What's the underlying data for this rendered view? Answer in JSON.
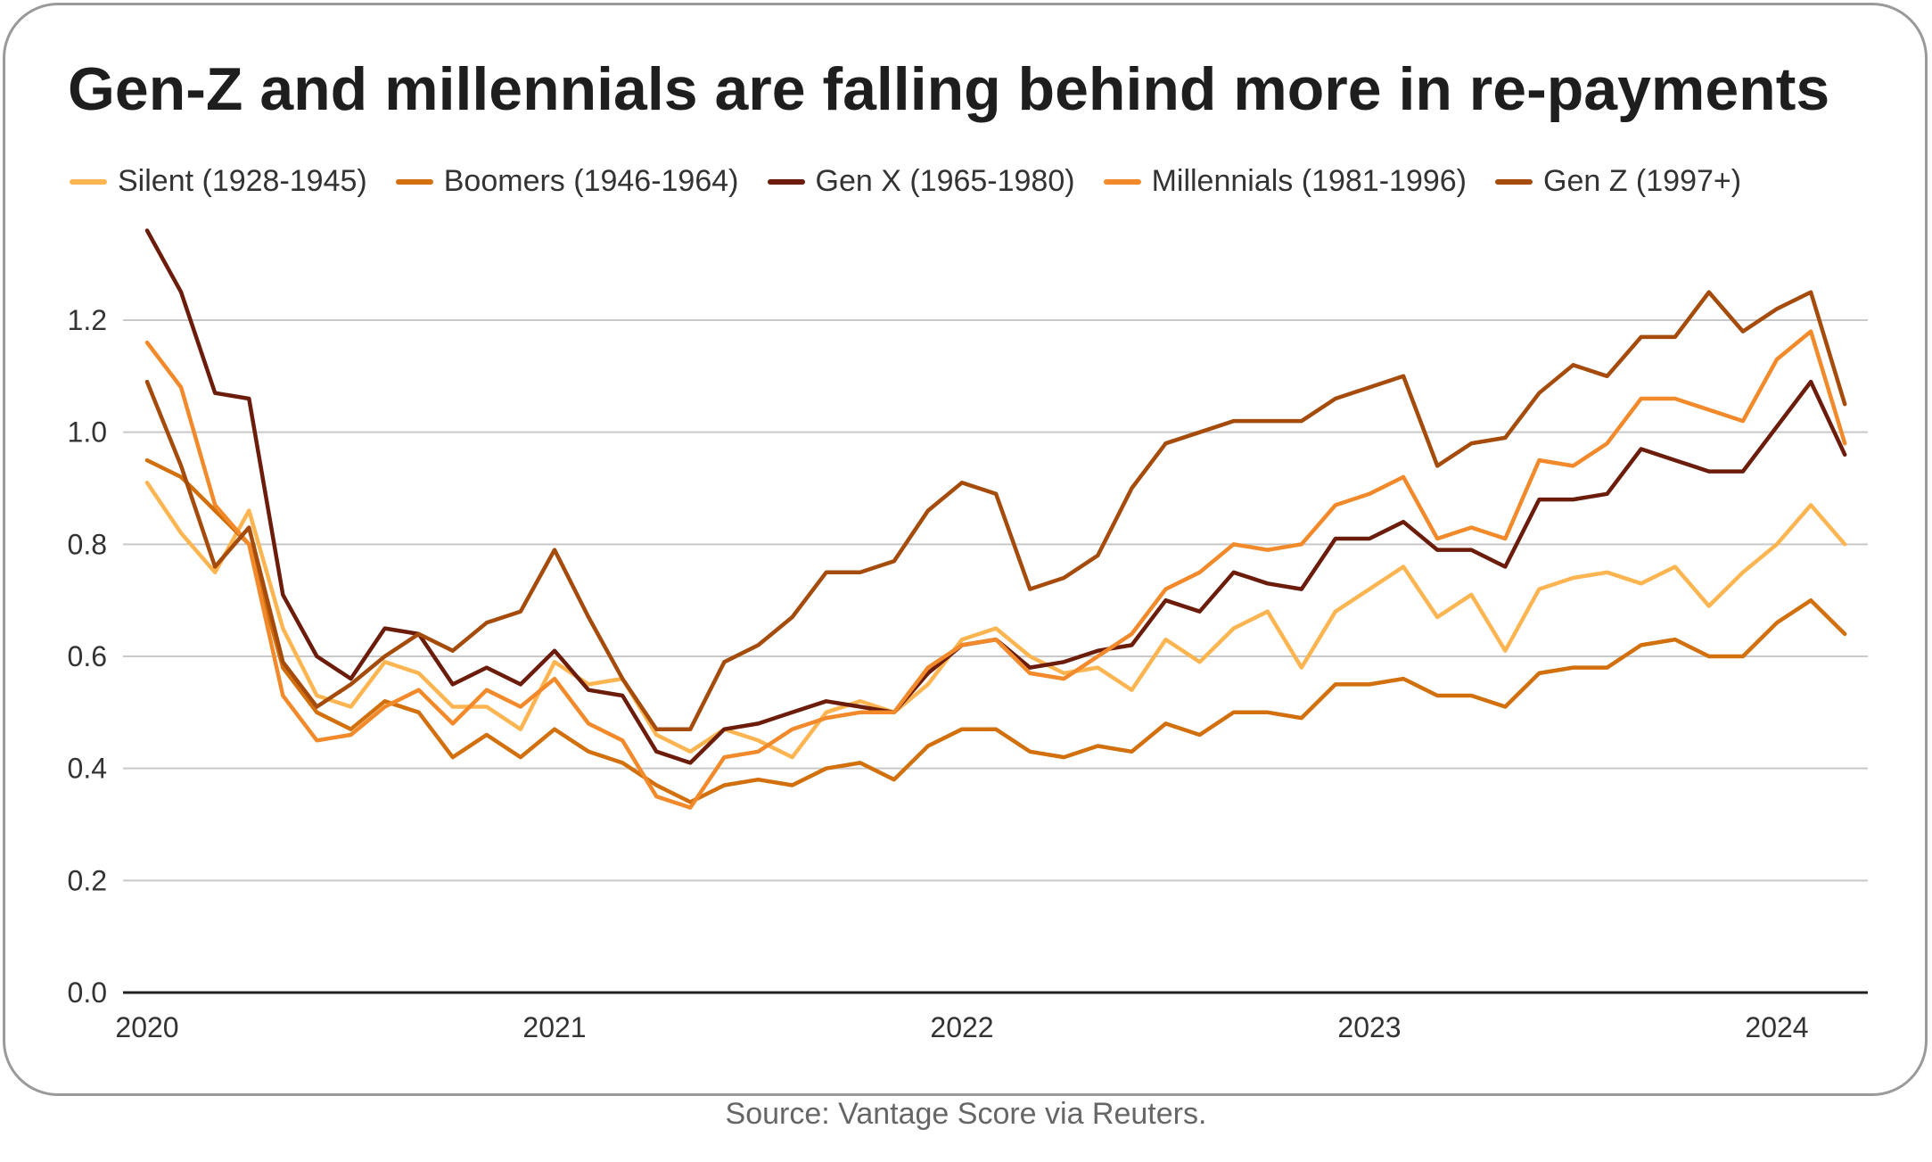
{
  "title": "Gen-Z and millennials are falling behind more in re-payments",
  "source": "Source: Vantage Score via Reuters.",
  "chart_data": {
    "type": "line",
    "title": "Gen-Z and millennials are falling behind more in re-payments",
    "xlabel": "",
    "ylabel": "",
    "ylim": [
      0,
      1.35
    ],
    "yticks": [
      0.0,
      0.2,
      0.4,
      0.6,
      0.8,
      1.0,
      1.2
    ],
    "ytick_labels": [
      "0.0",
      "0.2",
      "0.4",
      "0.6",
      "0.8",
      "1.0",
      "1.2"
    ],
    "xlim": [
      2020,
      2024.25
    ],
    "xticks": [
      2020,
      2021,
      2022,
      2023,
      2024
    ],
    "xtick_labels": [
      "2020",
      "2021",
      "2022",
      "2023",
      "2024"
    ],
    "grid": "horizontal",
    "legend_position": "top",
    "x_start": "2020-01",
    "x_step": "monthly",
    "series": [
      {
        "name": "Silent (1928-1945)",
        "color": "#fdb552",
        "values": [
          0.91,
          0.82,
          0.75,
          0.86,
          0.65,
          0.53,
          0.51,
          0.59,
          0.57,
          0.51,
          0.51,
          0.47,
          0.59,
          0.55,
          0.56,
          0.46,
          0.43,
          0.47,
          0.45,
          0.42,
          0.5,
          0.52,
          0.5,
          0.55,
          0.63,
          0.65,
          0.6,
          0.57,
          0.58,
          0.54,
          0.63,
          0.59,
          0.65,
          0.68,
          0.58,
          0.68,
          0.72,
          0.76,
          0.67,
          0.71,
          0.61,
          0.72,
          0.74,
          0.75,
          0.73,
          0.76,
          0.69,
          0.75,
          0.8,
          0.87,
          0.8
        ]
      },
      {
        "name": "Boomers (1946-1964)",
        "color": "#d2700e",
        "values": [
          0.95,
          0.92,
          0.86,
          0.8,
          0.58,
          0.5,
          0.47,
          0.52,
          0.5,
          0.42,
          0.46,
          0.42,
          0.47,
          0.43,
          0.41,
          0.37,
          0.34,
          0.37,
          0.38,
          0.37,
          0.4,
          0.41,
          0.38,
          0.44,
          0.47,
          0.47,
          0.43,
          0.42,
          0.44,
          0.43,
          0.48,
          0.46,
          0.5,
          0.5,
          0.49,
          0.55,
          0.55,
          0.56,
          0.53,
          0.53,
          0.51,
          0.57,
          0.58,
          0.58,
          0.62,
          0.63,
          0.6,
          0.6,
          0.66,
          0.7,
          0.64
        ]
      },
      {
        "name": "Gen X (1965-1980)",
        "color": "#6b1c0b",
        "values": [
          1.36,
          1.25,
          1.07,
          1.06,
          0.71,
          0.6,
          0.56,
          0.65,
          0.64,
          0.55,
          0.58,
          0.55,
          0.61,
          0.54,
          0.53,
          0.43,
          0.41,
          0.47,
          0.48,
          0.5,
          0.52,
          0.51,
          0.5,
          0.57,
          0.62,
          0.63,
          0.58,
          0.59,
          0.61,
          0.62,
          0.7,
          0.68,
          0.75,
          0.73,
          0.72,
          0.81,
          0.81,
          0.84,
          0.79,
          0.79,
          0.76,
          0.88,
          0.88,
          0.89,
          0.97,
          0.95,
          0.93,
          0.93,
          1.01,
          1.09,
          0.96
        ]
      },
      {
        "name": "Millennials (1981-1996)",
        "color": "#f28a2b",
        "values": [
          1.16,
          1.08,
          0.87,
          0.8,
          0.53,
          0.45,
          0.46,
          0.51,
          0.54,
          0.48,
          0.54,
          0.51,
          0.56,
          0.48,
          0.45,
          0.35,
          0.33,
          0.42,
          0.43,
          0.47,
          0.49,
          0.5,
          0.5,
          0.58,
          0.62,
          0.63,
          0.57,
          0.56,
          0.6,
          0.64,
          0.72,
          0.75,
          0.8,
          0.79,
          0.8,
          0.87,
          0.89,
          0.92,
          0.81,
          0.83,
          0.81,
          0.95,
          0.94,
          0.98,
          1.06,
          1.06,
          1.04,
          1.02,
          1.13,
          1.18,
          0.98
        ]
      },
      {
        "name": "Gen Z (1997+)",
        "color": "#a54c0c",
        "values": [
          1.09,
          0.94,
          0.76,
          0.83,
          0.59,
          0.51,
          0.55,
          0.6,
          0.64,
          0.61,
          0.66,
          0.68,
          0.79,
          0.67,
          0.56,
          0.47,
          0.47,
          0.59,
          0.62,
          0.67,
          0.75,
          0.75,
          0.77,
          0.86,
          0.91,
          0.89,
          0.72,
          0.74,
          0.78,
          0.9,
          0.98,
          1.0,
          1.02,
          1.02,
          1.02,
          1.06,
          1.08,
          1.1,
          0.94,
          0.98,
          0.99,
          1.07,
          1.12,
          1.1,
          1.17,
          1.17,
          1.25,
          1.18,
          1.22,
          1.25,
          1.05
        ]
      }
    ]
  }
}
